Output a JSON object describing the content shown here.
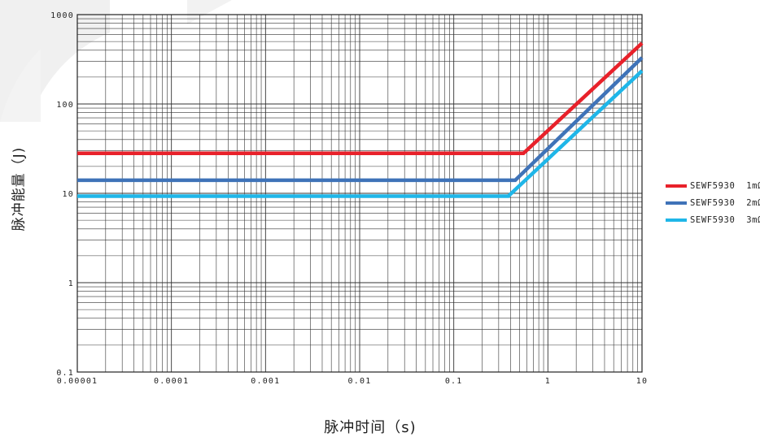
{
  "chart_data": {
    "type": "line",
    "xscale": "log",
    "yscale": "log",
    "xlim": [
      1e-05,
      10
    ],
    "ylim": [
      0.1,
      1000
    ],
    "xlabel": "脉冲时间（s)",
    "ylabel": "脉冲能量（J)",
    "x_tick_labels": [
      "0.00001",
      "0.0001",
      "0.001",
      "0.01",
      "0.1",
      "1",
      "10"
    ],
    "y_tick_labels": [
      "0.1",
      "1",
      "10",
      "100",
      "1000"
    ],
    "grid": true,
    "legend_position": "right",
    "series": [
      {
        "name": "SEWF5930  1mΩ",
        "color": "#e8212a",
        "x": [
          1e-05,
          0.55,
          10
        ],
        "y": [
          28,
          28,
          480
        ]
      },
      {
        "name": "SEWF5930  2mΩ",
        "color": "#3f73b8",
        "x": [
          1e-05,
          0.45,
          10
        ],
        "y": [
          14,
          14,
          330
        ]
      },
      {
        "name": "SEWF5930  3mΩ",
        "color": "#1fb6e8",
        "x": [
          1e-05,
          0.38,
          10
        ],
        "y": [
          9.3,
          9.3,
          235
        ]
      }
    ]
  }
}
